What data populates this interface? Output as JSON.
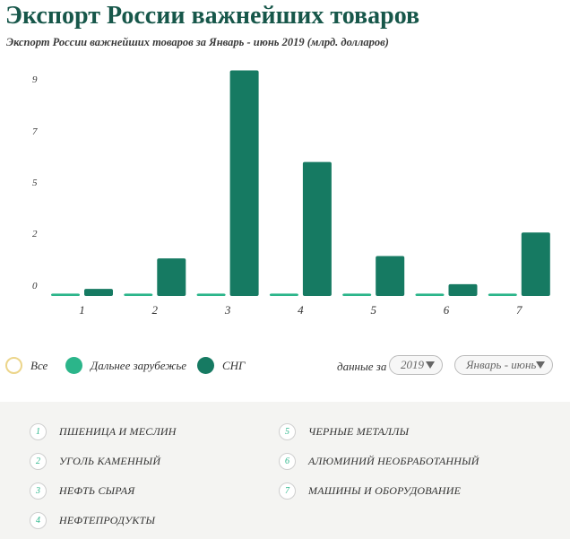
{
  "title": "Экспорт России важнейших товаров",
  "subtitle": "Экспорт России важнейших товаров за Январь - июнь 2019 (млрд. долларов)",
  "chart_data": {
    "type": "bar",
    "categories": [
      "1",
      "2",
      "3",
      "4",
      "5",
      "6",
      "7"
    ],
    "series": [
      {
        "name": "Дальнее зарубежье",
        "values": [
          0.1,
          0.1,
          0.1,
          0.1,
          0.1,
          0.1,
          0.1
        ]
      },
      {
        "name": "СНГ",
        "values": [
          0.3,
          1.6,
          9.6,
          5.7,
          1.7,
          0.5,
          2.7
        ]
      }
    ],
    "y_ticks": [
      "0",
      "2",
      "5",
      "7",
      "9"
    ],
    "ylim": [
      0,
      10
    ],
    "grid": false,
    "colors": {
      "far": "#2bb58a",
      "cis": "#167a62"
    }
  },
  "legend": {
    "all": "Все",
    "far": "Дальнее зарубежье",
    "cis": "СНГ"
  },
  "filter": {
    "label": "данные за",
    "year": "2019",
    "period": "Январь - июнь"
  },
  "key": [
    {
      "num": "1",
      "label": "ПШЕНИЦА И МЕСЛИН"
    },
    {
      "num": "2",
      "label": "УГОЛЬ КАМЕННЫЙ"
    },
    {
      "num": "3",
      "label": "НЕФТЬ СЫРАЯ"
    },
    {
      "num": "4",
      "label": "НЕФТЕПРОДУКТЫ"
    },
    {
      "num": "5",
      "label": "ЧЕРНЫЕ МЕТАЛЛЫ"
    },
    {
      "num": "6",
      "label": "АЛЮМИНИЙ НЕОБРАБОТАННЫЙ"
    },
    {
      "num": "7",
      "label": "МАШИНЫ И ОБОРУДОВАНИЕ"
    }
  ]
}
